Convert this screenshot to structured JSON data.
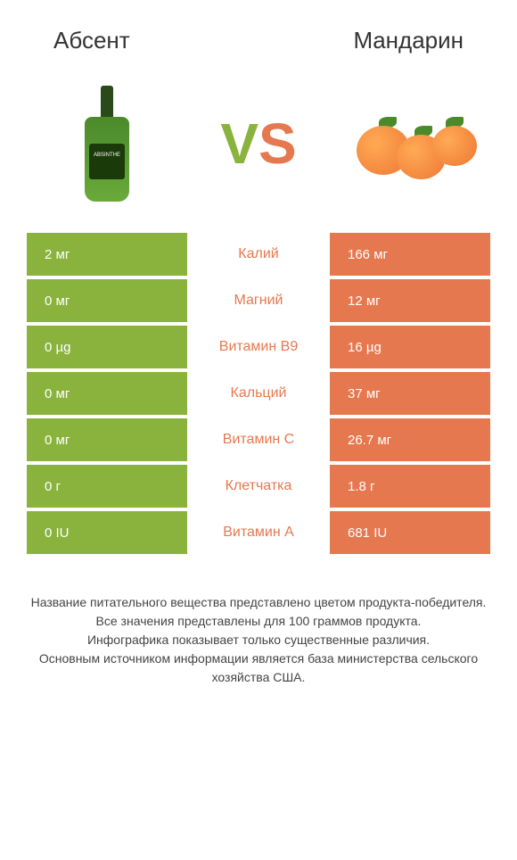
{
  "header": {
    "left_title": "Абсент",
    "right_title": "Mандарин"
  },
  "vs": {
    "v": "V",
    "s": "S"
  },
  "colors": {
    "left_bg": "#8ab33e",
    "right_bg": "#e67850",
    "mid_text": "#e67850"
  },
  "rows": [
    {
      "left": "2 мг",
      "label": "Калий",
      "right": "166 мг"
    },
    {
      "left": "0 мг",
      "label": "Магний",
      "right": "12 мг"
    },
    {
      "left": "0 µg",
      "label": "Витамин B9",
      "right": "16 µg"
    },
    {
      "left": "0 мг",
      "label": "Кальций",
      "right": "37 мг"
    },
    {
      "left": "0 мг",
      "label": "Витамин C",
      "right": "26.7 мг"
    },
    {
      "left": "0 г",
      "label": "Клетчатка",
      "right": "1.8 г"
    },
    {
      "left": "0 IU",
      "label": "Витамин A",
      "right": "681 IU"
    }
  ],
  "footer": {
    "line1": "Название питательного вещества представлено цветом продукта-победителя.",
    "line2": "Все значения представлены для 100 граммов продукта.",
    "line3": "Инфографика показывает только существенные различия.",
    "line4": "Основным источником информации является база министерства сельского хозяйства США."
  }
}
